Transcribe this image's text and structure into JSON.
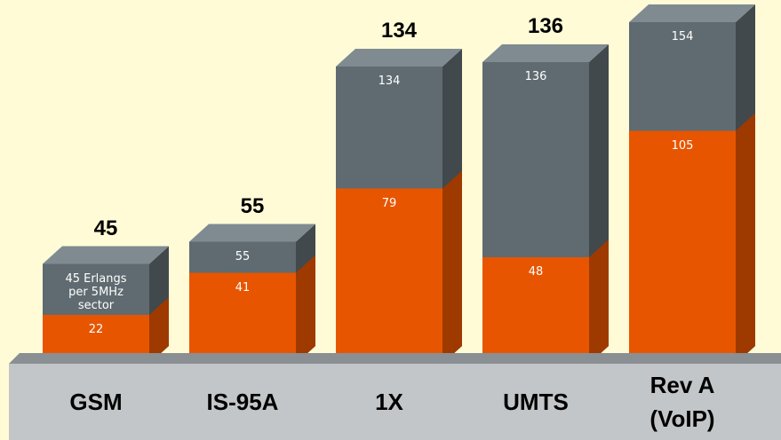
{
  "chart_data": {
    "type": "bar",
    "categories": [
      "GSM",
      "IS-95A",
      "1X",
      "UMTS",
      "Rev A\n(VoIP)"
    ],
    "series": [
      {
        "color": "#5f6b70",
        "values": [
          45,
          55,
          134,
          136,
          154
        ],
        "value_labels": [
          "45 Erlangs per 5MHz sector",
          "55",
          "134",
          "136",
          "154"
        ]
      },
      {
        "color": "#e85500",
        "values": [
          22,
          41,
          79,
          48,
          105
        ]
      }
    ],
    "ylim": [
      0,
      164
    ]
  }
}
